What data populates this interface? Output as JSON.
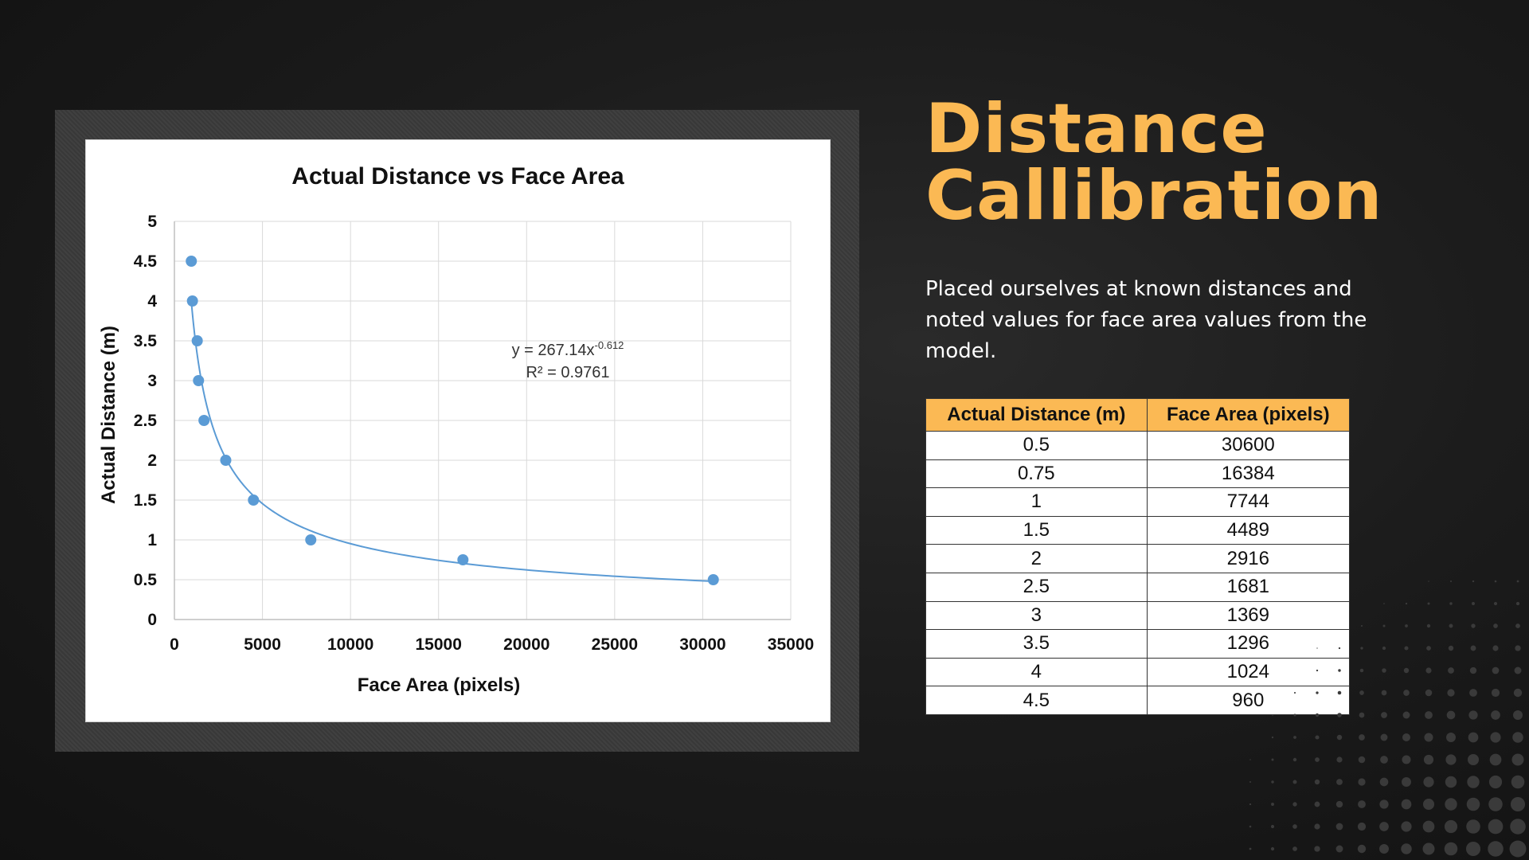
{
  "slide": {
    "title_line1": "Distance",
    "title_line2": "Callibration",
    "description": "Placed ourselves at known distances and noted values for face area values from the model.",
    "accent_color": "#fbb954"
  },
  "table": {
    "headers": [
      "Actual Distance (m)",
      "Face Area (pixels)"
    ],
    "rows": [
      [
        "0.5",
        "30600"
      ],
      [
        "0.75",
        "16384"
      ],
      [
        "1",
        "7744"
      ],
      [
        "1.5",
        "4489"
      ],
      [
        "2",
        "2916"
      ],
      [
        "2.5",
        "1681"
      ],
      [
        "3",
        "1369"
      ],
      [
        "3.5",
        "1296"
      ],
      [
        "4",
        "1024"
      ],
      [
        "4.5",
        "960"
      ]
    ]
  },
  "chart_data": {
    "type": "scatter",
    "title": "Actual Distance vs Face Area",
    "xlabel": "Face Area (pixels)",
    "ylabel": "Actual Distance (m)",
    "xlim": [
      0,
      35000
    ],
    "ylim": [
      0,
      5
    ],
    "xticks": [
      "0",
      "5000",
      "10000",
      "15000",
      "20000",
      "25000",
      "30000",
      "35000"
    ],
    "yticks": [
      "0",
      "0.5",
      "1",
      "1.5",
      "2",
      "2.5",
      "3",
      "3.5",
      "4",
      "4.5",
      "5"
    ],
    "grid": true,
    "point_color": "#5b9bd5",
    "points": [
      {
        "x": 30600,
        "y": 0.5
      },
      {
        "x": 16384,
        "y": 0.75
      },
      {
        "x": 7744,
        "y": 1
      },
      {
        "x": 4489,
        "y": 1.5
      },
      {
        "x": 2916,
        "y": 2
      },
      {
        "x": 1681,
        "y": 2.5
      },
      {
        "x": 1369,
        "y": 3
      },
      {
        "x": 1296,
        "y": 3.5
      },
      {
        "x": 1024,
        "y": 4
      },
      {
        "x": 960,
        "y": 4.5
      }
    ],
    "trendline": {
      "type": "power",
      "coefficient": 267.14,
      "exponent": -0.612,
      "equation_prefix": "y = 267.14x",
      "equation_exponent": "-0.612",
      "r2_text": "R² = 0.9761"
    }
  }
}
